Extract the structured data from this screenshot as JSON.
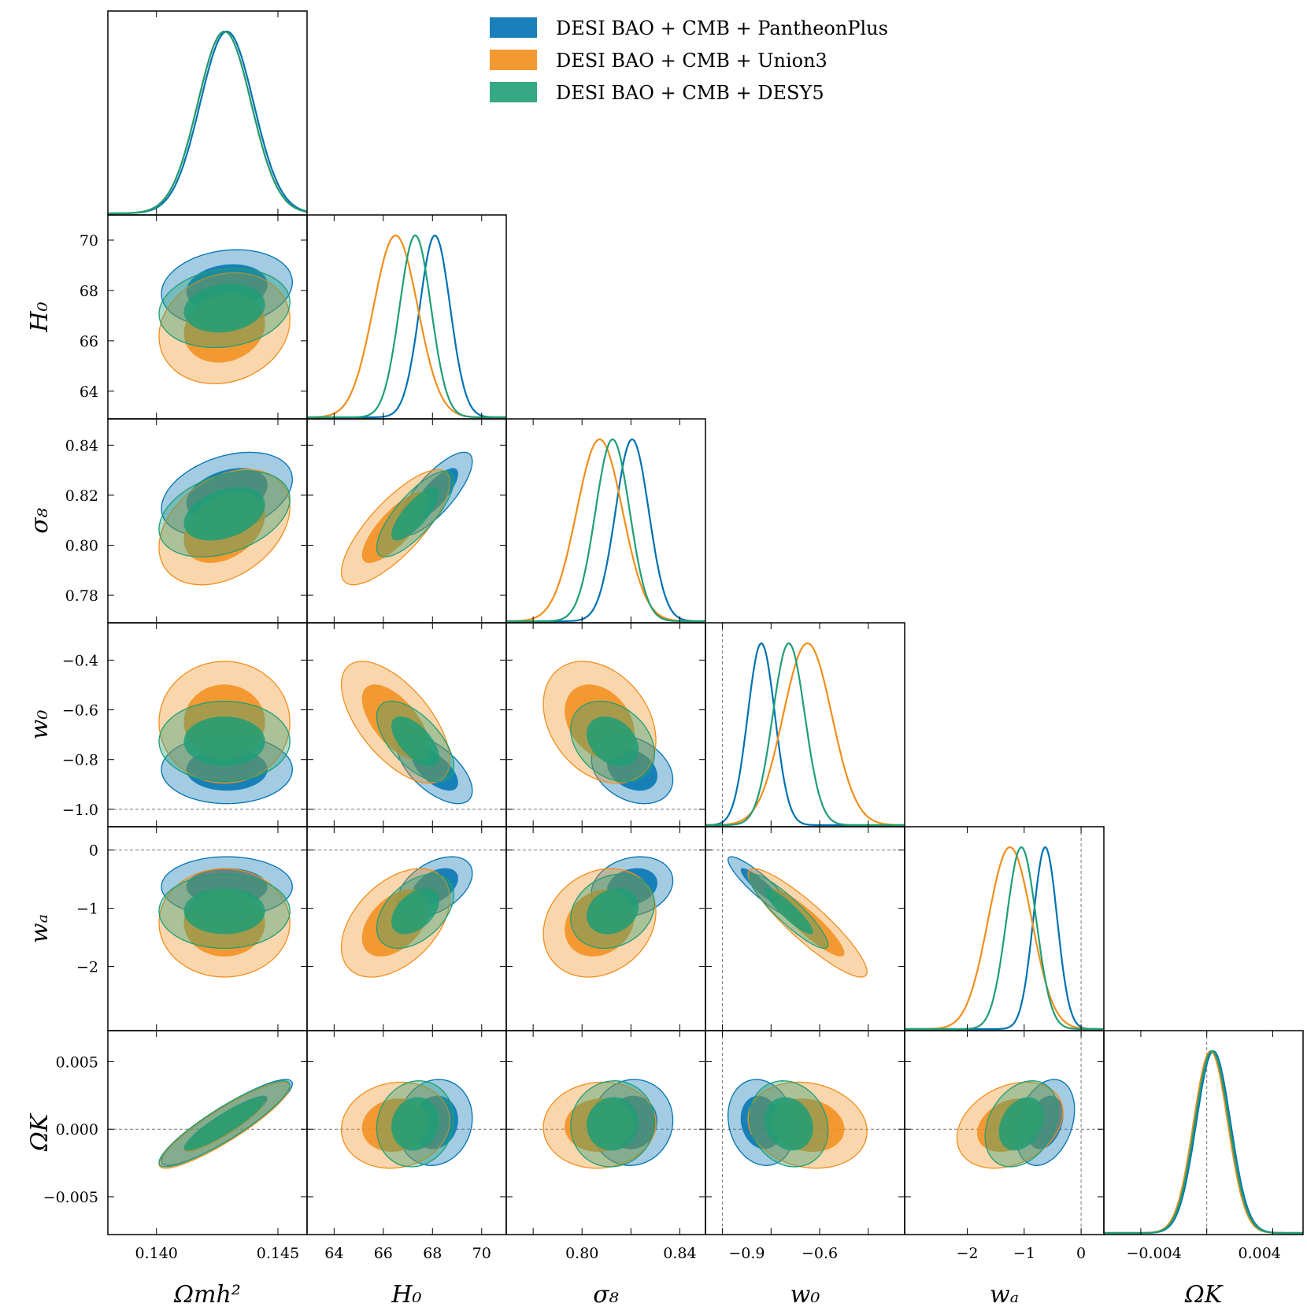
{
  "chart_data": {
    "type": "corner",
    "legend_position": "top-right",
    "grid": false,
    "series": [
      {
        "name": "DESI BAO + CMB + PantheonPlus",
        "color": "#0072b2",
        "mean": {
          "omh2": 0.1429,
          "H0": 68.1,
          "s8": 0.8205,
          "w0": -0.84,
          "wa": -0.63,
          "Ok": 0.0005
        },
        "sd": {
          "omh2": 0.0011,
          "H0": 0.62,
          "s8": 0.0068,
          "w0": 0.056,
          "wa": 0.21,
          "Ok": 0.0013
        }
      },
      {
        "name": "DESI BAO + CMB + Union3",
        "color": "#f28e1c",
        "mean": {
          "omh2": 0.1428,
          "H0": 66.5,
          "s8": 0.8072,
          "w0": -0.65,
          "wa": -1.25,
          "Ok": 0.0003
        },
        "sd": {
          "omh2": 0.0011,
          "H0": 0.9,
          "s8": 0.0094,
          "w0": 0.1,
          "wa": 0.38,
          "Ok": 0.0013
        }
      },
      {
        "name": "DESI BAO + CMB + DESY5",
        "color": "#1f9e77",
        "mean": {
          "omh2": 0.1428,
          "H0": 67.3,
          "s8": 0.8125,
          "w0": -0.727,
          "wa": -1.05,
          "Ok": 0.0004
        },
        "sd": {
          "omh2": 0.0011,
          "H0": 0.64,
          "s8": 0.007,
          "w0": 0.066,
          "wa": 0.26,
          "Ok": 0.0013
        }
      }
    ],
    "parameters": [
      {
        "key": "omh2",
        "label": "Ωmh²",
        "range": [
          0.138,
          0.1462
        ],
        "ticks": [
          0.14,
          0.145
        ],
        "tick_labels": [
          "0.140",
          "0.145"
        ],
        "ref": null
      },
      {
        "key": "H0",
        "label": "H₀",
        "range": [
          62.9,
          71.0
        ],
        "ticks": [
          64,
          66,
          68,
          70
        ],
        "tick_labels": [
          "64",
          "66",
          "68",
          "70"
        ],
        "ref": null
      },
      {
        "key": "s8",
        "label": "σ₈",
        "range": [
          0.769,
          0.8505
        ],
        "ticks": [
          0.78,
          0.8,
          0.82,
          0.84
        ],
        "tick_labels": [
          "0.78",
          "0.80",
          "0.82",
          "0.84"
        ],
        "ref": null
      },
      {
        "key": "w0",
        "label": "w₀",
        "range": [
          -1.07,
          -0.25
        ],
        "ticks": [
          -1.0,
          -0.8,
          -0.6,
          -0.4
        ],
        "tick_labels": [
          "−1.0",
          "−0.8",
          "−0.6",
          "−0.4"
        ],
        "ref": -1.0
      },
      {
        "key": "wa",
        "label": "wₐ",
        "range": [
          -3.1,
          0.4
        ],
        "ticks": [
          -2,
          -1,
          0
        ],
        "tick_labels": [
          "−2",
          "−1",
          "0"
        ],
        "ref": 0
      },
      {
        "key": "Ok",
        "label": "ΩK",
        "range": [
          -0.0078,
          0.0073
        ],
        "ticks": [
          -0.005,
          0.0,
          0.005
        ],
        "tick_labels": [
          "−0.005",
          "0.000",
          "0.005"
        ],
        "ref": 0
      }
    ],
    "bottom_tick_labels": {
      "omh2": {
        "ticks": [
          0.14,
          0.145
        ],
        "labels": [
          "0.140",
          "0.145"
        ]
      },
      "H0": {
        "ticks": [
          64,
          66,
          68,
          70
        ],
        "labels": [
          "64",
          "66",
          "68",
          "70"
        ]
      },
      "s8": {
        "ticks": [
          0.8,
          0.84
        ],
        "labels": [
          "0.80",
          "0.84"
        ]
      },
      "w0": {
        "ticks": [
          -0.9,
          -0.6
        ],
        "labels": [
          "−0.9",
          "−0.6"
        ]
      },
      "wa": {
        "ticks": [
          -2,
          -1,
          0
        ],
        "labels": [
          "−2",
          "−1",
          "0"
        ]
      },
      "Ok": {
        "ticks": [
          -0.004,
          0.004
        ],
        "labels": [
          "−0.004",
          "0.004"
        ]
      }
    },
    "correlations": {
      "omh2|H0": 0.15,
      "omh2|s8": 0.35,
      "omh2|w0": 0.0,
      "omh2|wa": 0.0,
      "omh2|Ok": 0.9,
      "H0|s8": 0.78,
      "H0|w0": -0.62,
      "H0|wa": 0.45,
      "H0|Ok": 0.1,
      "s8|w0": -0.3,
      "s8|wa": 0.2,
      "s8|Ok": 0.05,
      "w0|wa": -0.9,
      "w0|Ok": -0.15,
      "wa|Ok": 0.3
    },
    "confidence_levels": [
      "68%",
      "95%"
    ]
  }
}
